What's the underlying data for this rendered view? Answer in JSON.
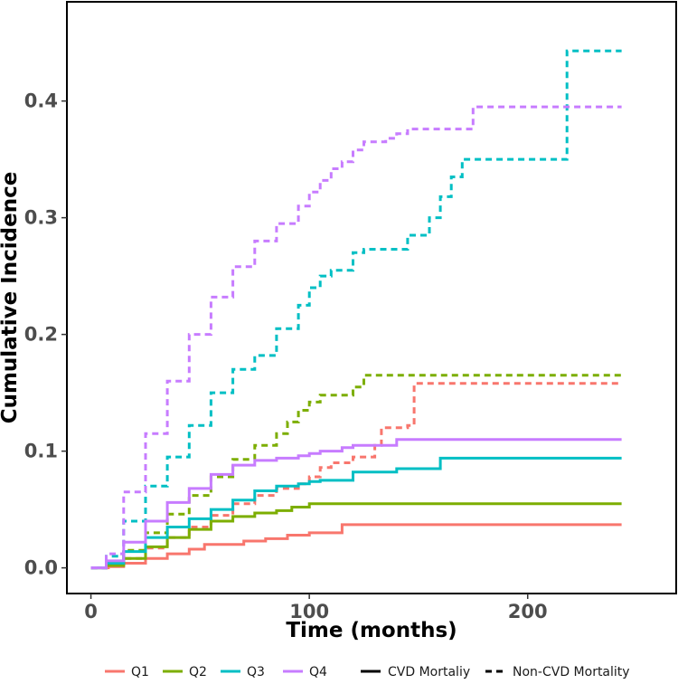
{
  "chart_data": {
    "type": "line",
    "xlabel": "Time (months)",
    "ylabel": "Cumulative Incidence",
    "xlim": [
      -11,
      268
    ],
    "ylim": [
      -0.022,
      0.485
    ],
    "x_ticks": [
      0,
      100,
      200
    ],
    "x_tick_labels": [
      "0",
      "100",
      "200"
    ],
    "y_ticks": [
      0.0,
      0.1,
      0.2,
      0.3,
      0.4
    ],
    "y_tick_labels": [
      "0.0",
      "0.1",
      "0.2",
      "0.3",
      "0.4"
    ],
    "grid": false,
    "legend_position": "bottom",
    "legend": {
      "groups": [
        {
          "label": "Q1",
          "color": "#F8766D"
        },
        {
          "label": "Q2",
          "color": "#7CAE00"
        },
        {
          "label": "Q3",
          "color": "#00BFC4"
        },
        {
          "label": "Q4",
          "color": "#C77CFF"
        }
      ],
      "linetypes": [
        {
          "label": "CVD Mortaliy",
          "dash": "solid"
        },
        {
          "label": "Non-CVD Mortality",
          "dash": "dashed"
        }
      ]
    },
    "series": [
      {
        "group": "Q1",
        "outcome": "CVD Mortaliy",
        "color": "#F8766D",
        "dash": "solid",
        "x": [
          0,
          8,
          15,
          25,
          35,
          45,
          52,
          60,
          70,
          80,
          90,
          100,
          115,
          243
        ],
        "y": [
          0,
          0.001,
          0.004,
          0.008,
          0.012,
          0.016,
          0.02,
          0.02,
          0.023,
          0.025,
          0.028,
          0.03,
          0.037,
          0.037
        ]
      },
      {
        "group": "Q1",
        "outcome": "Non-CVD Mortality",
        "color": "#F8766D",
        "dash": "dashed",
        "x": [
          0,
          7,
          15,
          25,
          35,
          45,
          55,
          65,
          75,
          85,
          95,
          100,
          105,
          110,
          120,
          130,
          133,
          145,
          148,
          243
        ],
        "y": [
          0,
          0.002,
          0.008,
          0.017,
          0.026,
          0.035,
          0.045,
          0.055,
          0.062,
          0.068,
          0.072,
          0.078,
          0.086,
          0.09,
          0.095,
          0.105,
          0.12,
          0.122,
          0.158,
          0.158
        ]
      },
      {
        "group": "Q2",
        "outcome": "CVD Mortaliy",
        "color": "#7CAE00",
        "dash": "solid",
        "x": [
          0,
          7,
          15,
          25,
          35,
          45,
          55,
          65,
          75,
          85,
          92,
          100,
          243
        ],
        "y": [
          0,
          0.002,
          0.008,
          0.018,
          0.026,
          0.033,
          0.04,
          0.044,
          0.047,
          0.049,
          0.052,
          0.055,
          0.055
        ]
      },
      {
        "group": "Q2",
        "outcome": "Non-CVD Mortality",
        "color": "#7CAE00",
        "dash": "dashed",
        "x": [
          0,
          7,
          15,
          25,
          35,
          45,
          55,
          65,
          75,
          85,
          90,
          95,
          100,
          105,
          110,
          120,
          125,
          243
        ],
        "y": [
          0,
          0.003,
          0.015,
          0.03,
          0.046,
          0.062,
          0.078,
          0.093,
          0.105,
          0.115,
          0.125,
          0.135,
          0.142,
          0.148,
          0.148,
          0.155,
          0.165,
          0.165
        ]
      },
      {
        "group": "Q3",
        "outcome": "CVD Mortaliy",
        "color": "#00BFC4",
        "dash": "solid",
        "x": [
          0,
          7,
          15,
          25,
          35,
          45,
          55,
          65,
          75,
          85,
          95,
          100,
          105,
          110,
          120,
          130,
          140,
          150,
          160,
          243
        ],
        "y": [
          0,
          0.004,
          0.014,
          0.026,
          0.035,
          0.042,
          0.05,
          0.058,
          0.066,
          0.07,
          0.072,
          0.074,
          0.075,
          0.075,
          0.082,
          0.082,
          0.085,
          0.085,
          0.094,
          0.094
        ]
      },
      {
        "group": "Q3",
        "outcome": "Non-CVD Mortality",
        "color": "#00BFC4",
        "dash": "dashed",
        "x": [
          0,
          7,
          15,
          25,
          35,
          45,
          55,
          65,
          75,
          85,
          95,
          100,
          105,
          110,
          120,
          125,
          135,
          145,
          155,
          160,
          165,
          170,
          180,
          190,
          200,
          210,
          218,
          243
        ],
        "y": [
          0,
          0.01,
          0.04,
          0.07,
          0.095,
          0.122,
          0.15,
          0.17,
          0.182,
          0.205,
          0.225,
          0.24,
          0.25,
          0.255,
          0.27,
          0.273,
          0.273,
          0.285,
          0.3,
          0.318,
          0.335,
          0.35,
          0.35,
          0.35,
          0.35,
          0.35,
          0.443,
          0.443
        ]
      },
      {
        "group": "Q4",
        "outcome": "CVD Mortaliy",
        "color": "#C77CFF",
        "dash": "solid",
        "x": [
          0,
          7,
          15,
          25,
          35,
          45,
          55,
          65,
          75,
          85,
          95,
          100,
          105,
          110,
          115,
          120,
          130,
          140,
          243
        ],
        "y": [
          0,
          0.006,
          0.022,
          0.04,
          0.056,
          0.068,
          0.08,
          0.088,
          0.092,
          0.094,
          0.096,
          0.098,
          0.1,
          0.1,
          0.103,
          0.105,
          0.105,
          0.11,
          0.11
        ]
      },
      {
        "group": "Q4",
        "outcome": "Non-CVD Mortality",
        "color": "#C77CFF",
        "dash": "dashed",
        "x": [
          0,
          7,
          15,
          25,
          35,
          45,
          55,
          65,
          75,
          85,
          95,
          100,
          105,
          110,
          115,
          120,
          125,
          130,
          135,
          140,
          145,
          150,
          160,
          170,
          175,
          200,
          243
        ],
        "y": [
          0,
          0.012,
          0.065,
          0.115,
          0.16,
          0.2,
          0.232,
          0.258,
          0.28,
          0.295,
          0.31,
          0.322,
          0.332,
          0.342,
          0.348,
          0.358,
          0.365,
          0.365,
          0.368,
          0.372,
          0.376,
          0.376,
          0.376,
          0.376,
          0.395,
          0.395,
          0.395
        ]
      }
    ]
  }
}
